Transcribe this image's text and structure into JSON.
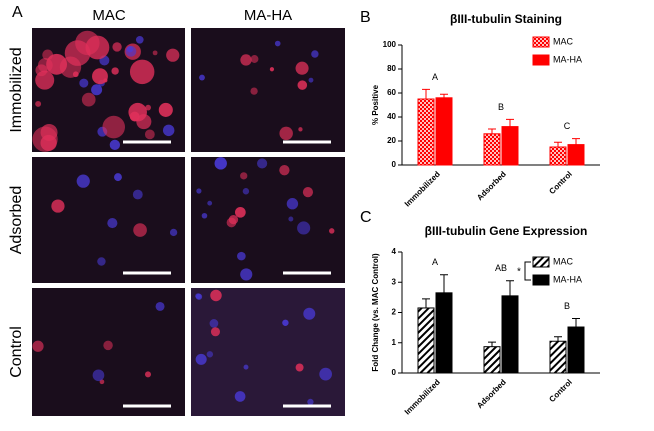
{
  "panel_labels": [
    "A",
    "B",
    "C"
  ],
  "image_grid": {
    "columns": [
      "MAC",
      "MA-HA"
    ],
    "rows": [
      "Immobilized",
      "Adsorbed",
      "Control"
    ]
  },
  "chart_data": [
    {
      "type": "bar",
      "title": "βIII-tubulin Staining",
      "y_label": "% Positive",
      "categories": [
        "Immobilized",
        "Adsorbed",
        "Control"
      ],
      "annotations": [
        "A",
        "B",
        "C"
      ],
      "series": [
        {
          "name": "MAC",
          "color": "#ff0000",
          "pattern": "checker",
          "values": [
            55,
            26,
            15
          ],
          "errors": [
            8,
            4,
            4
          ]
        },
        {
          "name": "MA-HA",
          "color": "#ff0000",
          "pattern": "solid",
          "values": [
            56,
            32,
            17
          ],
          "errors": [
            3,
            6,
            5
          ]
        }
      ],
      "ylim": [
        0,
        100
      ],
      "yticks": [
        0,
        20,
        40,
        60,
        80,
        100
      ],
      "legend": "top-right"
    },
    {
      "type": "bar",
      "title": "βIII-tubulin Gene Expression",
      "y_label": "Fold Change (vs. MAC Control)",
      "categories": [
        "Immobilized",
        "Adsorbed",
        "Control"
      ],
      "annotations": [
        "A",
        "AB",
        "B"
      ],
      "legend_marker": "*",
      "series": [
        {
          "name": "MAC",
          "color": "#000000",
          "pattern": "hatch",
          "values": [
            2.15,
            0.87,
            1.05
          ],
          "errors": [
            0.3,
            0.15,
            0.15
          ]
        },
        {
          "name": "MA-HA",
          "color": "#000000",
          "pattern": "solid",
          "values": [
            2.65,
            2.55,
            1.52
          ],
          "errors": [
            0.6,
            0.5,
            0.28
          ]
        }
      ],
      "ylim": [
        0,
        4
      ],
      "yticks": [
        0,
        1,
        2,
        3,
        4
      ],
      "legend": "top-right"
    }
  ]
}
